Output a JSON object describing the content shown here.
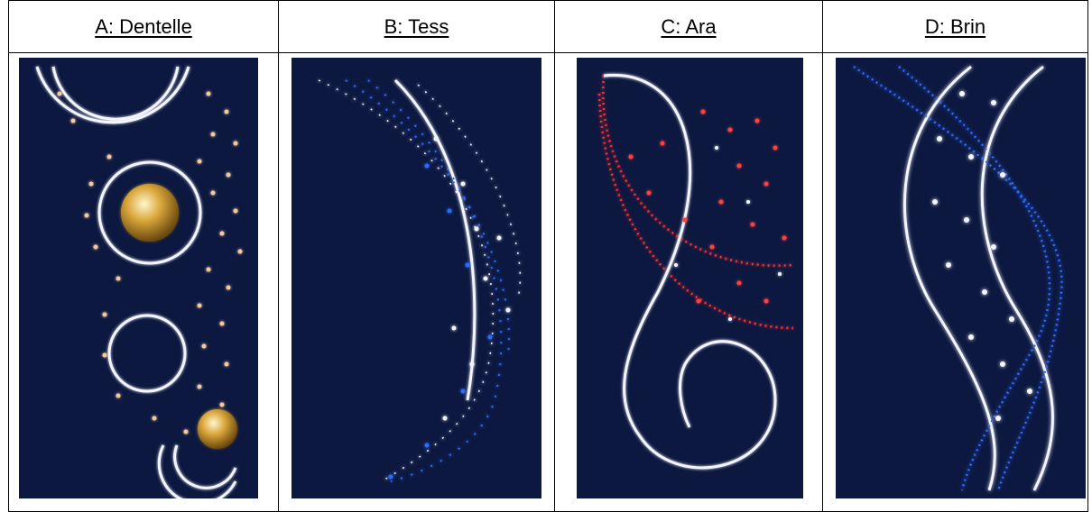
{
  "designs": [
    {
      "label": "A: Dentelle",
      "name": "dentelle-panel"
    },
    {
      "label": "B: Tess",
      "name": "tess-panel"
    },
    {
      "label": "C: Ara",
      "name": "ara-panel"
    },
    {
      "label": "D: Brin",
      "name": "brin-panel"
    }
  ],
  "colors": {
    "panel_background": "#0c1840",
    "white_light": "#f4f6ff",
    "warm_light": "#f5c9a0",
    "blue_light": "#2f6bff",
    "red_light": "#ff2d2d",
    "gold_bauble": "#d9a63a"
  }
}
